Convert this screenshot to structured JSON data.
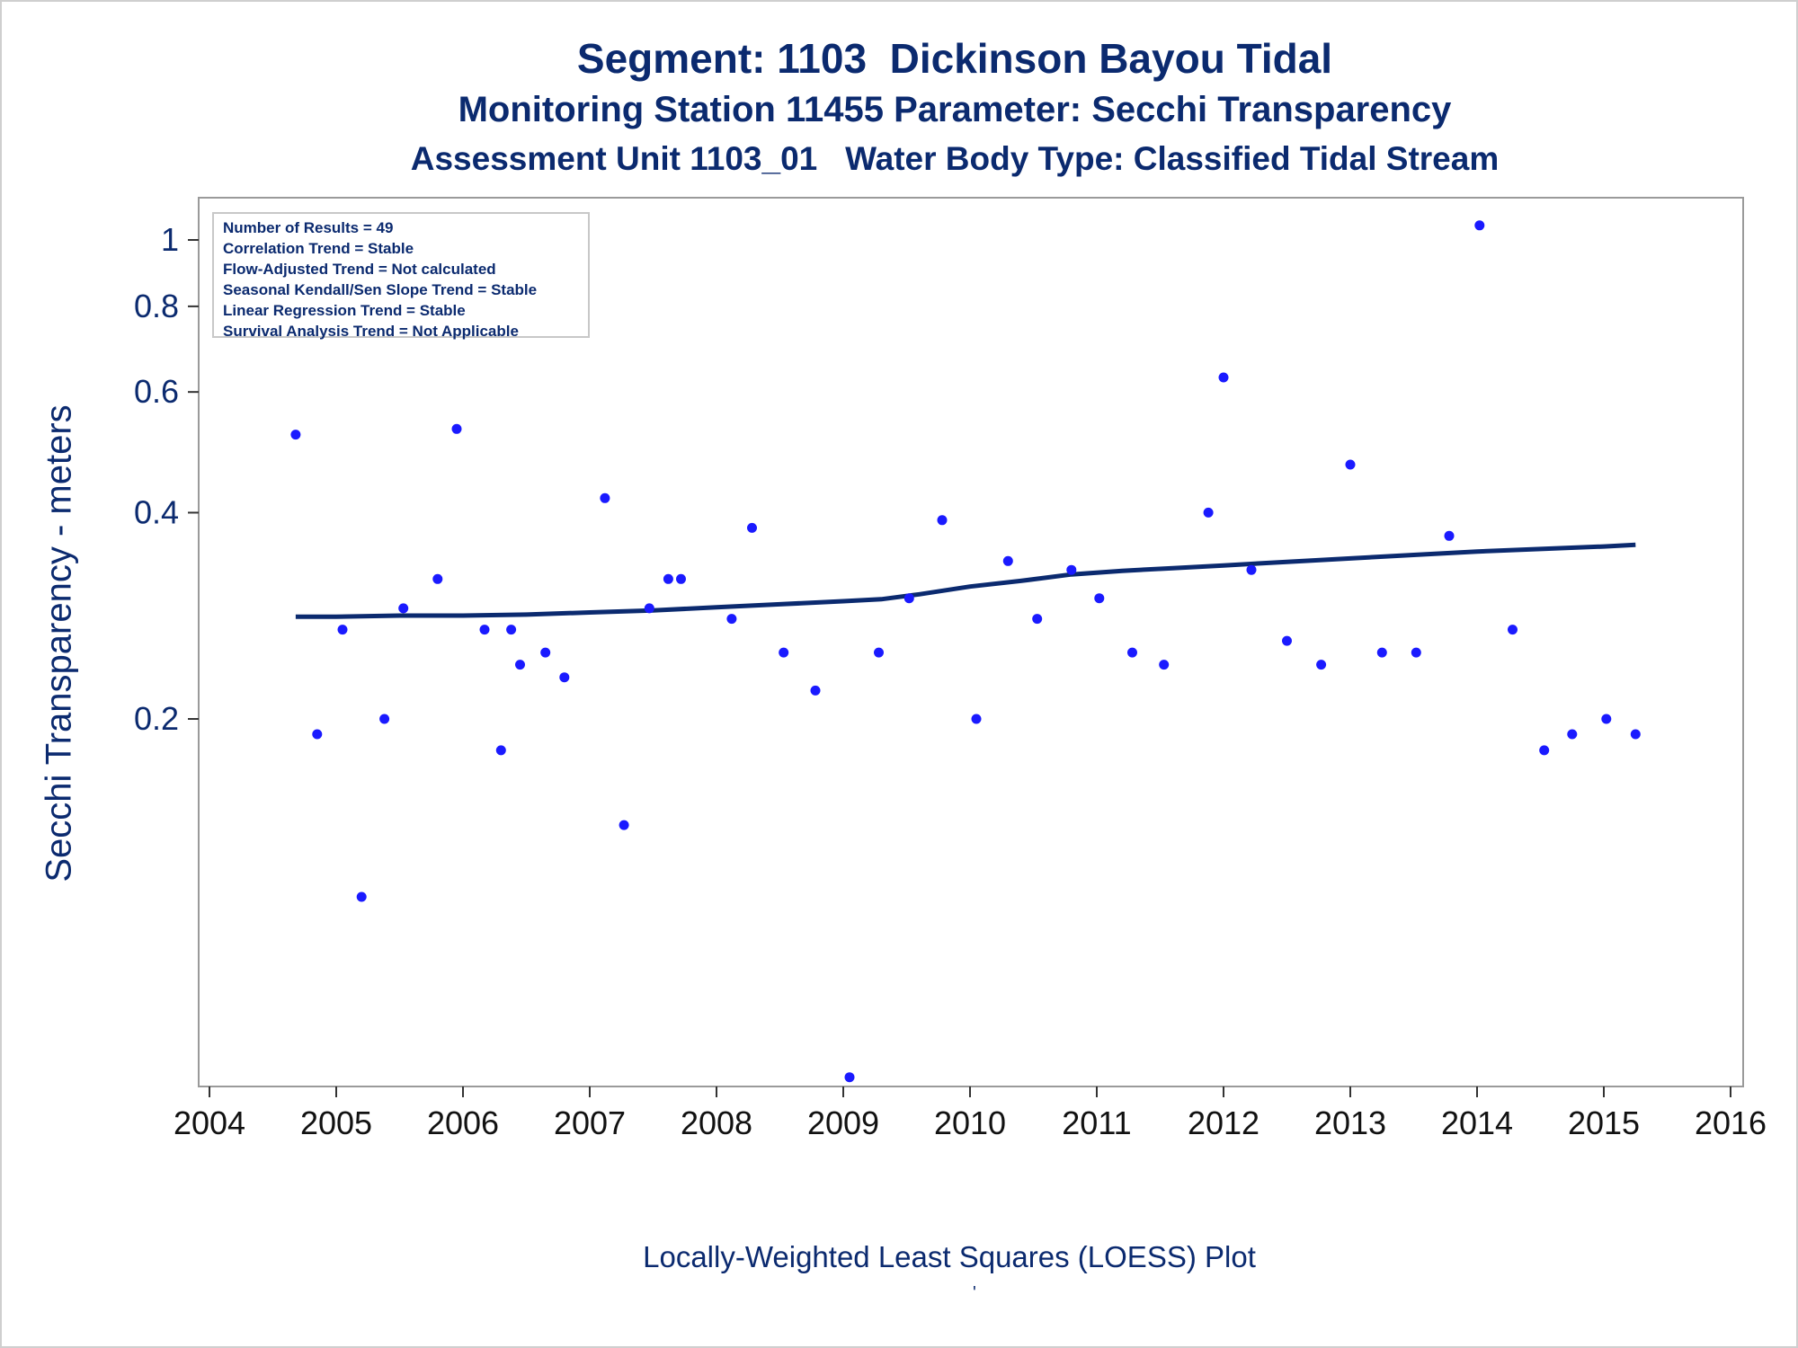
{
  "titles": {
    "line1": "Segment: 1103  Dickinson Bayou Tidal",
    "line2": "Monitoring Station 11455 Parameter: Secchi Transparency",
    "line3": "Assessment Unit 1103_01   Water Body Type: Classified Tidal Stream"
  },
  "stats": [
    "Number of Results = 49",
    "Correlation Trend = Stable",
    "Flow-Adjusted Trend = Not calculated",
    "Seasonal Kendall/Sen Slope Trend = Stable",
    "Linear Regression Trend = Stable",
    "Survival Analysis Trend = Not Applicable"
  ],
  "footnote": "Locally-Weighted Least Squares (LOESS) Plot",
  "footmark": "'",
  "colors": {
    "points": "#1a1aff",
    "loess": "#0b2a6f",
    "text": "#0b2a6f",
    "frame": "#9a9a9a"
  },
  "chart_data": {
    "type": "scatter",
    "ylabel": "Secchi Transparency - meters",
    "xlabel": "",
    "y_scale": "log",
    "xlim": [
      2004,
      2016
    ],
    "ylim": [
      0.05,
      1.1
    ],
    "x_ticks": [
      2004,
      2005,
      2006,
      2007,
      2008,
      2009,
      2010,
      2011,
      2012,
      2013,
      2014,
      2015,
      2016
    ],
    "y_ticks": [
      0.2,
      0.4,
      0.6,
      0.8,
      1
    ],
    "y_tick_labels": [
      "0.2",
      "0.4",
      "0.6",
      "0.8",
      "1"
    ],
    "legend": "none",
    "grid": false,
    "series": [
      {
        "type": "scatter",
        "x": [
          2004.68,
          2004.85,
          2005.05,
          2005.2,
          2005.38,
          2005.53,
          2005.8,
          2005.95,
          2006.17,
          2006.3,
          2006.38,
          2006.45,
          2006.65,
          2006.8,
          2007.12,
          2007.27,
          2007.47,
          2007.62,
          2007.72,
          2008.12,
          2008.28,
          2008.53,
          2008.78,
          2009.05,
          2009.28,
          2009.52,
          2009.78,
          2010.05,
          2010.3,
          2010.53,
          2010.8,
          2011.02,
          2011.28,
          2011.53,
          2011.88,
          2012.0,
          2012.22,
          2012.5,
          2012.77,
          2013.0,
          2013.25,
          2013.52,
          2013.78,
          2014.02,
          2014.28,
          2014.53,
          2014.75,
          2015.02,
          2015.25
        ],
        "y": [
          0.52,
          0.19,
          0.27,
          0.11,
          0.2,
          0.29,
          0.32,
          0.53,
          0.27,
          0.18,
          0.27,
          0.24,
          0.25,
          0.23,
          0.42,
          0.14,
          0.29,
          0.32,
          0.32,
          0.28,
          0.38,
          0.25,
          0.22,
          0.06,
          0.25,
          0.3,
          0.39,
          0.2,
          0.34,
          0.28,
          0.33,
          0.3,
          0.25,
          0.24,
          0.4,
          0.63,
          0.33,
          0.26,
          0.24,
          0.47,
          0.25,
          0.25,
          0.37,
          1.05,
          0.27,
          0.18,
          0.19,
          0.2,
          0.19
        ]
      },
      {
        "type": "line",
        "x": [
          2004.68,
          2005.0,
          2005.5,
          2006.0,
          2006.5,
          2007.0,
          2007.5,
          2008.0,
          2008.5,
          2009.0,
          2009.3,
          2009.6,
          2010.0,
          2010.4,
          2010.8,
          2011.2,
          2011.6,
          2012.0,
          2012.5,
          2013.0,
          2013.5,
          2014.0,
          2014.5,
          2015.0,
          2015.25
        ],
        "y": [
          0.282,
          0.282,
          0.283,
          0.283,
          0.284,
          0.286,
          0.288,
          0.291,
          0.294,
          0.297,
          0.299,
          0.304,
          0.312,
          0.318,
          0.325,
          0.329,
          0.332,
          0.335,
          0.339,
          0.343,
          0.347,
          0.351,
          0.354,
          0.357,
          0.359
        ]
      }
    ]
  }
}
